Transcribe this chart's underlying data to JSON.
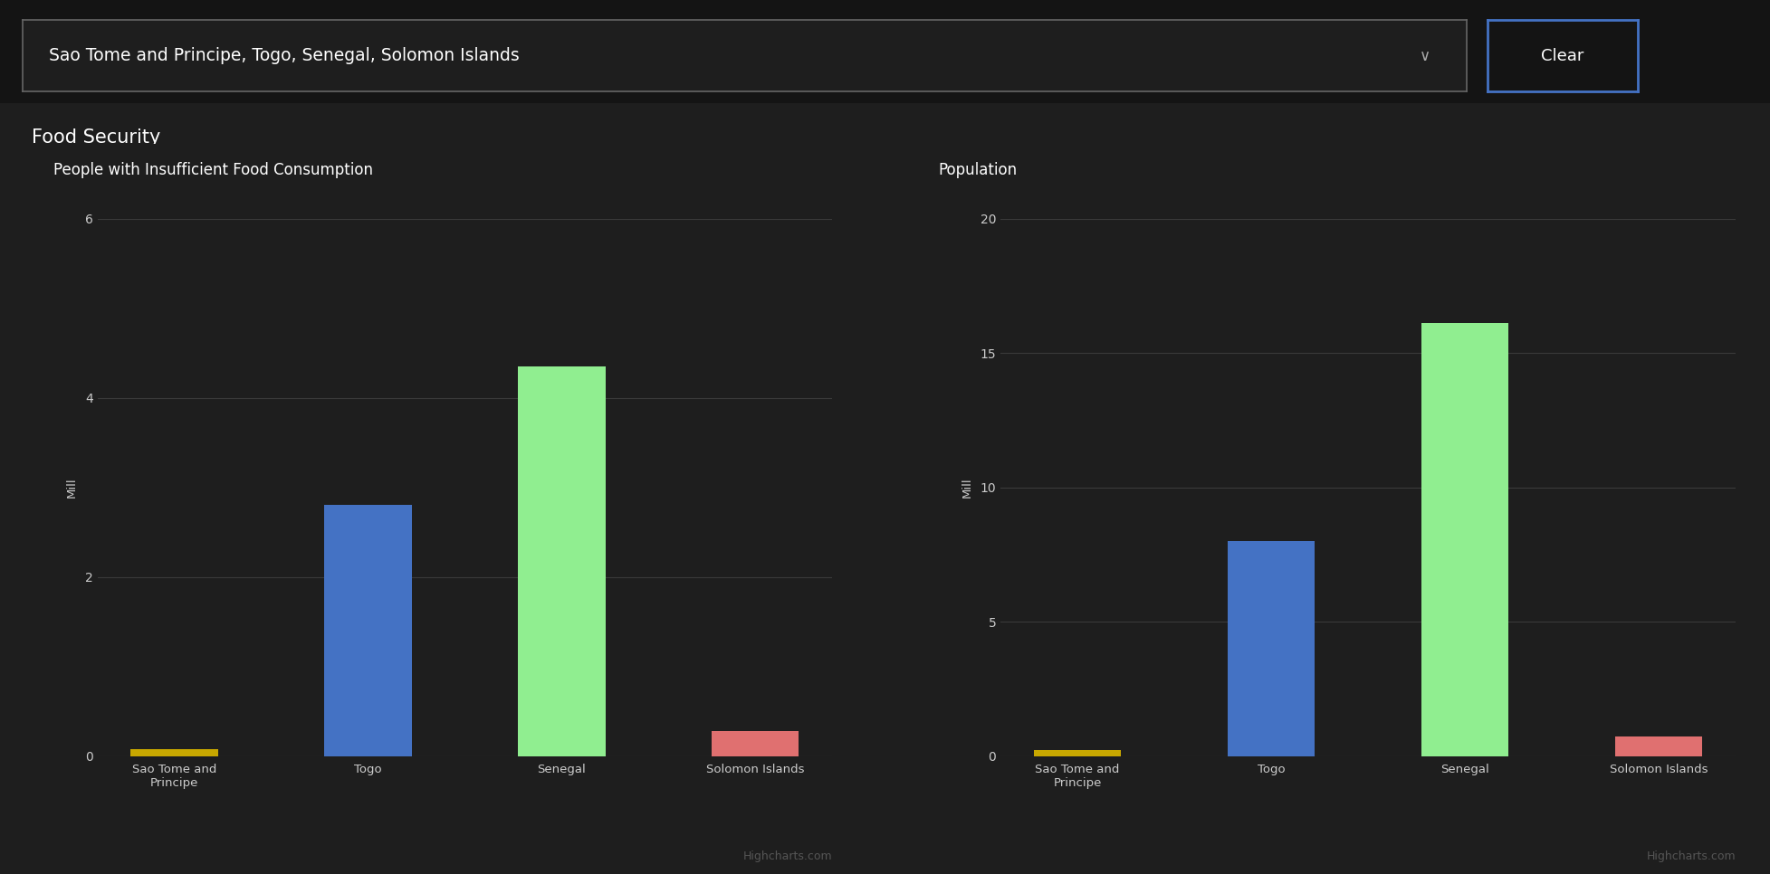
{
  "bg_color": "#141414",
  "panel_color": "#1e1e1e",
  "header_text": "Sao Tome and Principe, Togo, Senegal, Solomon Islands",
  "section_title": "Food Security",
  "chart1_title": "People with Insufficient Food Consumption",
  "chart2_title": "Population",
  "categories": [
    "Sao Tome and\nPrincipe",
    "Togo",
    "Senegal",
    "Solomon Islands"
  ],
  "chart1_values": [
    0.08,
    2.8,
    4.35,
    0.28
  ],
  "chart2_values": [
    0.22,
    8.0,
    16.1,
    0.72
  ],
  "bar_colors": [
    "#c8a800",
    "#4472c4",
    "#90ee90",
    "#e07070"
  ],
  "chart1_ylim": [
    0,
    6
  ],
  "chart1_yticks": [
    0,
    2,
    4,
    6
  ],
  "chart2_ylim": [
    0,
    20
  ],
  "chart2_yticks": [
    0,
    5,
    10,
    15,
    20
  ],
  "ylabel": "Mill",
  "grid_color": "#3a3a3a",
  "text_color": "#cccccc",
  "watermark": "Highcharts.com",
  "title_fontsize": 12,
  "label_fontsize": 9.5,
  "tick_fontsize": 10,
  "watermark_fontsize": 9
}
